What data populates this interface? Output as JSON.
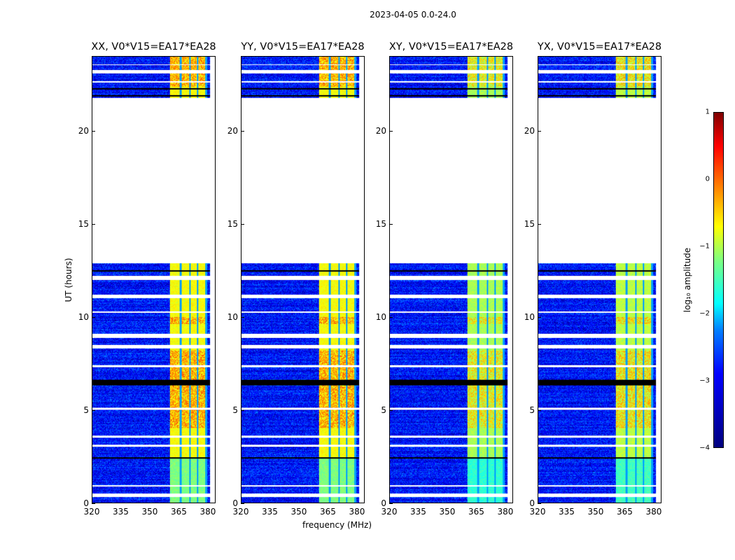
{
  "chart_data": {
    "type": "heatmap",
    "title": "2023-04-05 0.0-24.0",
    "panels": [
      {
        "title": "XX, V0*V15=EA17*EA28",
        "band_level": -0.9,
        "hot_level": -0.2
      },
      {
        "title": "YY, V0*V15=EA17*EA28",
        "band_level": -0.9,
        "hot_level": -0.2
      },
      {
        "title": "XY, V0*V15=EA17*EA28",
        "band_level": -1.3,
        "hot_level": -0.6
      },
      {
        "title": "YX, V0*V15=EA17*EA28",
        "band_level": -1.2,
        "hot_level": -0.5
      }
    ],
    "xlabel": "frequency (MHz)",
    "ylabel": "UT (hours)",
    "xlim": [
      320,
      384
    ],
    "ylim": [
      0,
      24
    ],
    "xticks": [
      "320",
      "335",
      "350",
      "365",
      "380"
    ],
    "xtick_values": [
      320,
      335,
      350,
      365,
      380
    ],
    "yticks": [
      "0",
      "5",
      "10",
      "15",
      "20"
    ],
    "ytick_values": [
      0,
      5,
      10,
      15,
      20
    ],
    "background_level": -3.3,
    "rfi_band_mhz": [
      360.5,
      380
    ],
    "band_gap_lines_mhz": [
      366,
      371,
      375,
      379.5
    ],
    "data_gap_hours": [
      12.9,
      21.8
    ],
    "flagged_rows_hours": [
      [
        0.3,
        0.5
      ],
      [
        0.85,
        0.95
      ],
      [
        3.0,
        3.1
      ],
      [
        3.5,
        3.6
      ],
      [
        5.0,
        5.1
      ],
      [
        7.3,
        7.4
      ],
      [
        8.3,
        8.5
      ],
      [
        8.85,
        9.1
      ],
      [
        10.2,
        10.3
      ],
      [
        11.0,
        11.2
      ],
      [
        12.0,
        12.2
      ],
      [
        22.6,
        22.7
      ],
      [
        23.1,
        23.3
      ],
      [
        23.55,
        23.6
      ]
    ],
    "dark_rows_hours": [
      [
        2.35,
        2.45
      ],
      [
        6.3,
        6.6
      ],
      [
        12.45,
        12.5
      ],
      [
        21.85,
        21.95
      ],
      [
        22.25,
        22.3
      ]
    ],
    "colorbar": {
      "label": "log₁₀ amplitude",
      "ticks": [
        "1",
        "0",
        "−1",
        "−2",
        "−3",
        "−4"
      ],
      "tick_values": [
        1,
        0,
        -1,
        -2,
        -3,
        -4
      ],
      "range": [
        -4,
        1
      ],
      "colormap": "jet"
    }
  }
}
